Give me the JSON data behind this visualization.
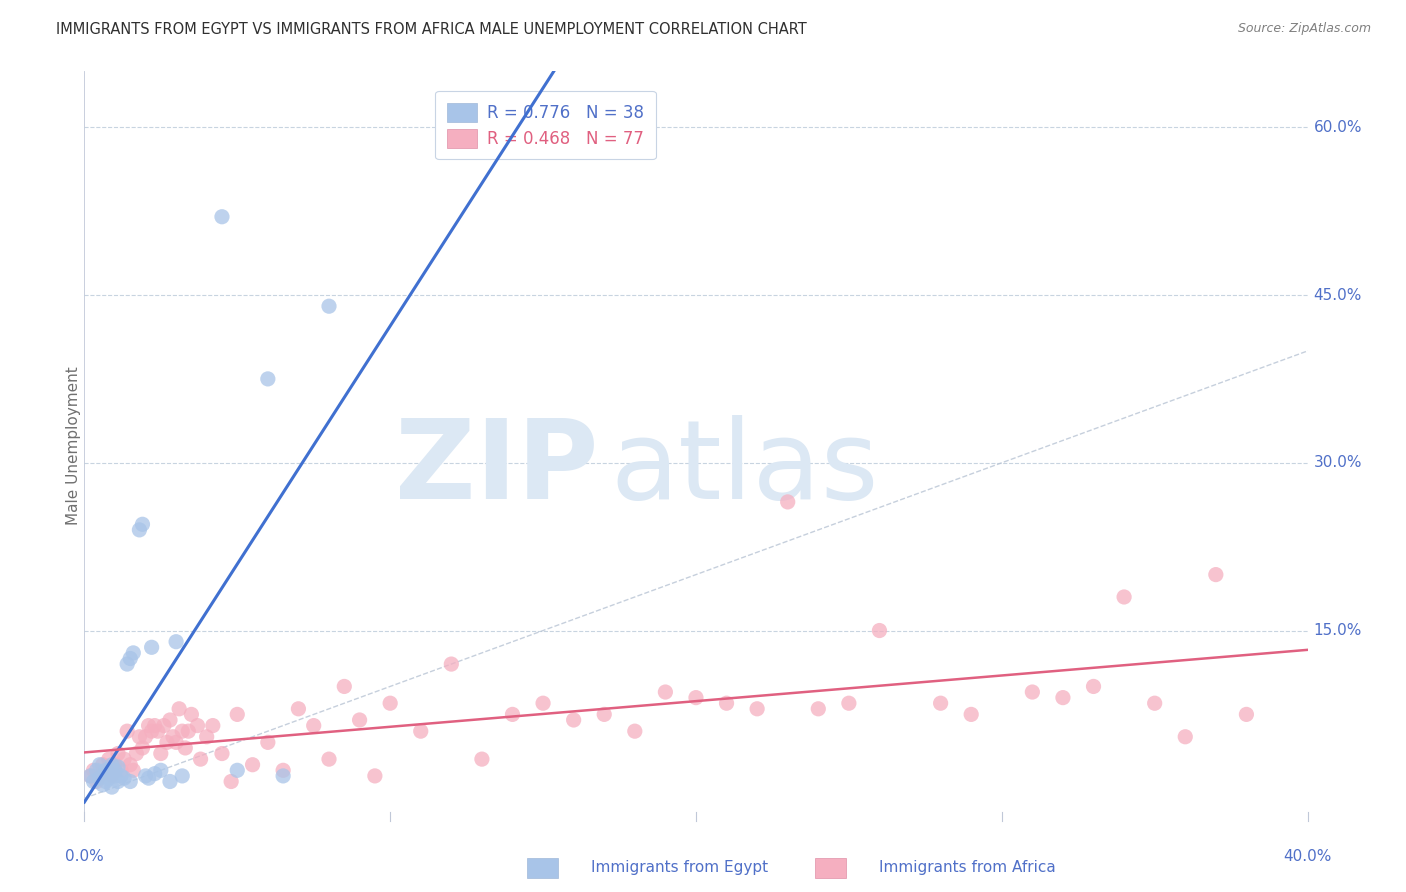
{
  "title": "IMMIGRANTS FROM EGYPT VS IMMIGRANTS FROM AFRICA MALE UNEMPLOYMENT CORRELATION CHART",
  "source": "Source: ZipAtlas.com",
  "ylabel": "Male Unemployment",
  "ytick_labels": [
    "60.0%",
    "45.0%",
    "30.0%",
    "15.0%"
  ],
  "ytick_values": [
    0.6,
    0.45,
    0.3,
    0.15
  ],
  "xlim": [
    0.0,
    0.4
  ],
  "ylim": [
    -0.02,
    0.65
  ],
  "legend_egypt_R": "0.776",
  "legend_egypt_N": "38",
  "legend_africa_R": "0.468",
  "legend_africa_N": "77",
  "egypt_color": "#a8c4e8",
  "africa_color": "#f5afc0",
  "egypt_line_color": "#4070d0",
  "africa_line_color": "#e06080",
  "diagonal_color": "#b8c4d4",
  "label_color": "#5070c8",
  "background_color": "#ffffff",
  "egypt_points_x": [
    0.002,
    0.003,
    0.004,
    0.005,
    0.005,
    0.006,
    0.006,
    0.007,
    0.007,
    0.008,
    0.008,
    0.009,
    0.009,
    0.01,
    0.01,
    0.011,
    0.011,
    0.012,
    0.013,
    0.014,
    0.015,
    0.015,
    0.016,
    0.018,
    0.019,
    0.02,
    0.021,
    0.022,
    0.023,
    0.025,
    0.028,
    0.03,
    0.032,
    0.045,
    0.05,
    0.06,
    0.065,
    0.08
  ],
  "egypt_points_y": [
    0.02,
    0.015,
    0.025,
    0.018,
    0.03,
    0.02,
    0.012,
    0.025,
    0.015,
    0.018,
    0.022,
    0.01,
    0.03,
    0.02,
    0.025,
    0.015,
    0.028,
    0.02,
    0.018,
    0.12,
    0.125,
    0.015,
    0.13,
    0.24,
    0.245,
    0.02,
    0.018,
    0.135,
    0.022,
    0.025,
    0.015,
    0.14,
    0.02,
    0.52,
    0.025,
    0.375,
    0.02,
    0.44
  ],
  "africa_points_x": [
    0.002,
    0.003,
    0.004,
    0.005,
    0.006,
    0.007,
    0.008,
    0.009,
    0.01,
    0.011,
    0.012,
    0.013,
    0.014,
    0.015,
    0.016,
    0.017,
    0.018,
    0.019,
    0.02,
    0.021,
    0.022,
    0.023,
    0.024,
    0.025,
    0.026,
    0.027,
    0.028,
    0.029,
    0.03,
    0.031,
    0.032,
    0.033,
    0.034,
    0.035,
    0.037,
    0.038,
    0.04,
    0.042,
    0.045,
    0.048,
    0.05,
    0.055,
    0.06,
    0.065,
    0.07,
    0.075,
    0.08,
    0.085,
    0.09,
    0.095,
    0.1,
    0.11,
    0.12,
    0.13,
    0.14,
    0.15,
    0.16,
    0.17,
    0.18,
    0.19,
    0.2,
    0.21,
    0.22,
    0.23,
    0.24,
    0.25,
    0.26,
    0.28,
    0.29,
    0.31,
    0.32,
    0.33,
    0.34,
    0.35,
    0.36,
    0.37,
    0.38
  ],
  "africa_points_y": [
    0.02,
    0.025,
    0.015,
    0.02,
    0.03,
    0.025,
    0.035,
    0.02,
    0.03,
    0.04,
    0.025,
    0.035,
    0.06,
    0.03,
    0.025,
    0.04,
    0.055,
    0.045,
    0.055,
    0.065,
    0.06,
    0.065,
    0.06,
    0.04,
    0.065,
    0.05,
    0.07,
    0.055,
    0.05,
    0.08,
    0.06,
    0.045,
    0.06,
    0.075,
    0.065,
    0.035,
    0.055,
    0.065,
    0.04,
    0.015,
    0.075,
    0.03,
    0.05,
    0.025,
    0.08,
    0.065,
    0.035,
    0.1,
    0.07,
    0.02,
    0.085,
    0.06,
    0.12,
    0.035,
    0.075,
    0.085,
    0.07,
    0.075,
    0.06,
    0.095,
    0.09,
    0.085,
    0.08,
    0.265,
    0.08,
    0.085,
    0.15,
    0.085,
    0.075,
    0.095,
    0.09,
    0.1,
    0.18,
    0.085,
    0.055,
    0.2,
    0.075
  ],
  "watermark_zip": "ZIP",
  "watermark_atlas": "atlas",
  "watermark_color": "#dce8f4",
  "watermark_fontsize": 80
}
